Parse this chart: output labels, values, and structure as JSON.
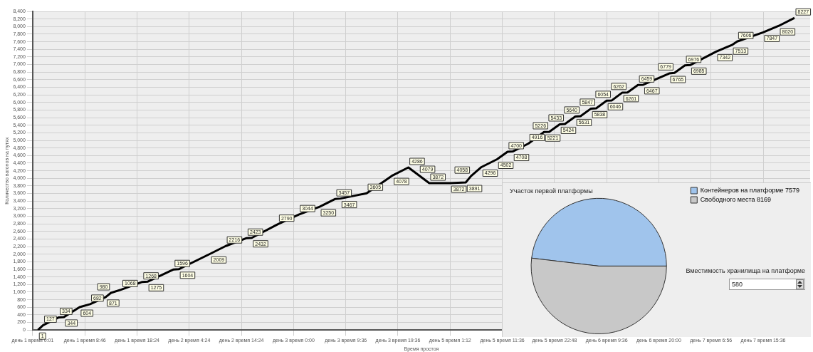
{
  "chart_data": [
    {
      "type": "line",
      "xlabel": "Время простоя",
      "ylabel": "Количество вагонов на путях",
      "categories": [
        "день 1 время 0:01",
        null,
        null,
        null,
        null,
        null,
        null,
        null,
        null,
        null,
        "день 1 время 8:46",
        null,
        null,
        null,
        null,
        null,
        null,
        null,
        null,
        null,
        "день 1 время 18:24",
        null,
        null,
        null,
        null,
        null,
        null,
        null,
        null,
        null,
        "день 2 время 4:24",
        null,
        null,
        null,
        null,
        null,
        null,
        null,
        null,
        null,
        "день 2 время 14:24",
        null,
        null,
        null,
        null,
        null,
        null,
        null,
        null,
        null,
        "день 3 время 0:00",
        null,
        null,
        null,
        null,
        null,
        null,
        null,
        null,
        null,
        "день 3 время 9:36",
        null,
        null,
        null,
        null,
        null,
        null,
        null,
        null,
        null,
        "день 3 время 19:36",
        null,
        null,
        null,
        null,
        null,
        null,
        null,
        null,
        null,
        "день 5 время 1:12",
        null,
        null,
        null,
        null,
        null,
        null,
        null,
        null,
        null,
        "день 5 время 11:36",
        null,
        null,
        null,
        null,
        null,
        null,
        null,
        null,
        null,
        "день 5 время 22:48",
        null,
        null,
        null,
        null,
        null,
        null,
        null,
        null,
        null,
        "день 6 время 9:36",
        null,
        null,
        null,
        null,
        null,
        null,
        null,
        null,
        null,
        "день 6 время 20:00",
        null,
        null,
        null,
        null,
        null,
        null,
        null,
        null,
        null,
        "день 7 время 6:56",
        null,
        null,
        null,
        null,
        null,
        null,
        null,
        null,
        null,
        "день 7 время 15:36",
        null,
        null,
        null,
        null,
        null,
        null,
        null,
        null,
        null
      ],
      "series": [
        {
          "color": "#000000",
          "values": [
            null,
            1,
            127,
            null,
            null,
            334,
            344,
            null,
            null,
            604,
            null,
            682,
            null,
            null,
            871,
            980,
            null,
            1068,
            null,
            null,
            null,
            1268,
            1275,
            null,
            null,
            null,
            null,
            1596,
            1604,
            null,
            null,
            null,
            null,
            null,
            2009,
            null,
            null,
            2216,
            null,
            null,
            null,
            2423,
            2432,
            null,
            null,
            null,
            null,
            2790,
            null,
            null,
            null,
            3044,
            null,
            null,
            null,
            3250,
            null,
            null,
            3457,
            3467,
            null,
            null,
            null,
            null,
            3605,
            null,
            null,
            null,
            null,
            4078,
            null,
            null,
            4286,
            null,
            4079,
            null,
            3872,
            null,
            null,
            null,
            3872,
            null,
            null,
            3891,
            4058,
            null,
            4296,
            null,
            null,
            4502,
            null,
            4700,
            4708,
            null,
            null,
            4916,
            null,
            null,
            5221,
            5226,
            null,
            5424,
            5433,
            null,
            5631,
            5640,
            null,
            5838,
            5847,
            null,
            6046,
            6054,
            null,
            6261,
            6262,
            null,
            6459,
            6467,
            null,
            null,
            null,
            null,
            6765,
            6779,
            null,
            6976,
            6985,
            null,
            null,
            null,
            null,
            7342,
            null,
            null,
            7513,
            7606,
            null,
            null,
            null,
            null,
            7847,
            null,
            null,
            8020,
            null,
            null,
            8227,
            null,
            null,
            null
          ]
        }
      ],
      "data_labels": true,
      "marker": "none",
      "grid": true,
      "legend": false,
      "ylim": [
        0,
        8400
      ],
      "yticks": [
        0,
        {
          "value": 200,
          "label": "200"
        },
        {
          "value": 400,
          "label": "400"
        },
        {
          "value": 600,
          "label": "600"
        },
        {
          "value": 800,
          "label": "800"
        },
        {
          "value": 1000,
          "label": "1,000"
        },
        {
          "value": 1200,
          "label": "1,200"
        },
        {
          "value": 1400,
          "label": "1,400"
        },
        {
          "value": 1600,
          "label": "1,600"
        },
        {
          "value": 1800,
          "label": "1,800"
        },
        {
          "value": 2000,
          "label": "2,000"
        },
        {
          "value": 2200,
          "label": "2,200"
        },
        {
          "value": 2400,
          "label": "2,400"
        },
        {
          "value": 2600,
          "label": "2,600"
        },
        {
          "value": 2800,
          "label": "2,800"
        },
        {
          "value": 3000,
          "label": "3,000"
        },
        {
          "value": 3200,
          "label": "3,200"
        },
        {
          "value": 3400,
          "label": "3,400"
        },
        {
          "value": 3600,
          "label": "3,600"
        },
        {
          "value": 3800,
          "label": "3,800"
        },
        {
          "value": 4000,
          "label": "4,000"
        },
        {
          "value": 4200,
          "label": "4,200"
        },
        {
          "value": 4400,
          "label": "4,400"
        },
        {
          "value": 4600,
          "label": "4,600"
        },
        {
          "value": 4800,
          "label": "4,800"
        },
        {
          "value": 5000,
          "label": "5,000"
        },
        {
          "value": 5200,
          "label": "5,200"
        },
        {
          "value": 5400,
          "label": "5,400"
        },
        {
          "value": 5600,
          "label": "5,600"
        },
        {
          "value": 5800,
          "label": "5,800"
        },
        {
          "value": 6000,
          "label": "6,000"
        },
        {
          "value": 6200,
          "label": "6,200"
        },
        {
          "value": 6400,
          "label": "6,400"
        },
        {
          "value": 6600,
          "label": "6,600"
        },
        {
          "value": 6800,
          "label": "6,800"
        },
        {
          "value": 7000,
          "label": "7,000"
        },
        {
          "value": 7200,
          "label": "7,200"
        },
        {
          "value": 7400,
          "label": "7,400"
        },
        {
          "value": 7600,
          "label": "7,600"
        },
        {
          "value": 7800,
          "label": "7,800"
        },
        {
          "value": 8000,
          "label": "8,000"
        },
        {
          "value": 8200,
          "label": "8,200"
        },
        {
          "value": 8400,
          "label": "8,400"
        }
      ]
    },
    {
      "type": "pie",
      "title": "Участок первой платформы",
      "categories": [
        "Контейнеров на платформе 7579",
        "Свободного места 8169"
      ],
      "values": [
        7579,
        8169
      ],
      "colors": [
        "#a0c4ec",
        "#c8c8c8"
      ],
      "legend": "top right",
      "annotations": [
        "Вместимость хранилища на платформе",
        "580"
      ]
    }
  ]
}
